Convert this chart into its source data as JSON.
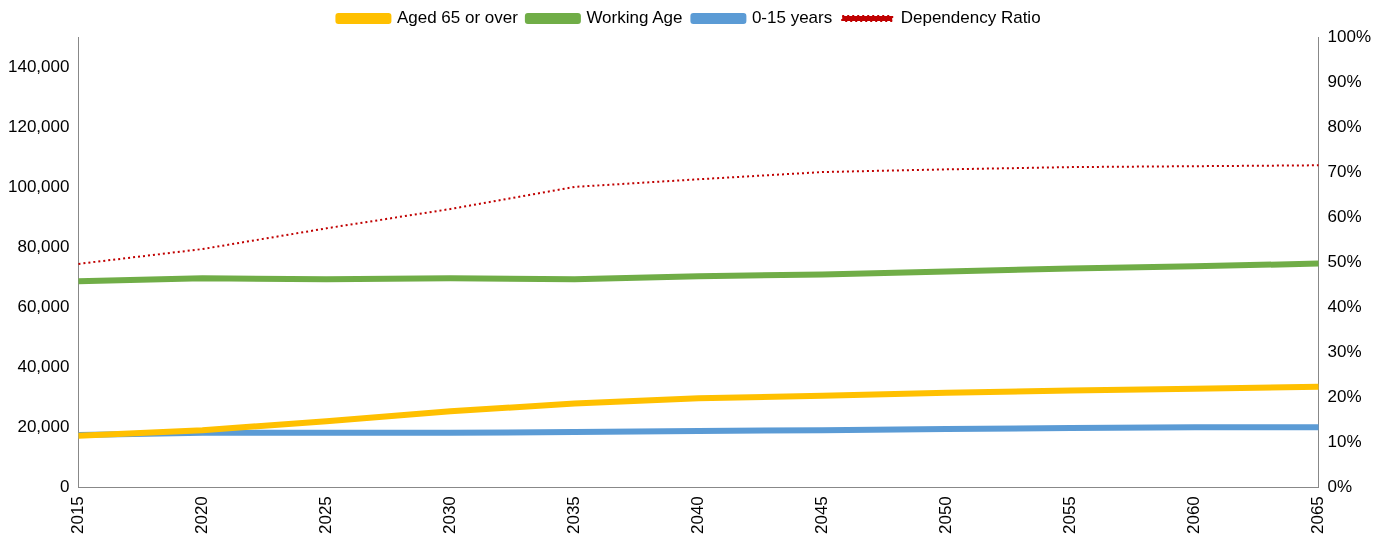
{
  "chart_data": {
    "type": "line",
    "categories": [
      "2015",
      "2020",
      "2025",
      "2030",
      "2035",
      "2040",
      "2045",
      "2050",
      "2055",
      "2060",
      "2065"
    ],
    "series": [
      {
        "name": "Aged 65 or over",
        "color": "#ffc000",
        "line_style": "solid",
        "values": [
          17100,
          19000,
          22000,
          25300,
          27900,
          29600,
          30500,
          31500,
          32200,
          32800,
          33500
        ]
      },
      {
        "name": "Working Age",
        "color": "#70ad47",
        "line_style": "solid",
        "values": [
          68600,
          69600,
          69300,
          69600,
          69300,
          70300,
          70900,
          71900,
          72900,
          73600,
          74500
        ]
      },
      {
        "name": "0-15 years",
        "color": "#5b9bd5",
        "line_style": "solid",
        "values": [
          17400,
          18100,
          18100,
          18100,
          18400,
          18700,
          19000,
          19400,
          19700,
          20000,
          20000
        ]
      },
      {
        "name": "Dependency Ratio",
        "color": "#c00000",
        "line_style": "dotted",
        "axis": "y2",
        "values": [
          49.6,
          52.9,
          57.5,
          61.8,
          66.7,
          68.4,
          70.0,
          70.6,
          71.1,
          71.3,
          71.5
        ]
      }
    ],
    "ylim": [
      0,
      150000
    ],
    "yticks": [
      {
        "value": 0,
        "label": "0"
      },
      {
        "value": 20000,
        "label": "20,000"
      },
      {
        "value": 40000,
        "label": "40,000"
      },
      {
        "value": 60000,
        "label": "60,000"
      },
      {
        "value": 80000,
        "label": "80,000"
      },
      {
        "value": 100000,
        "label": "100,000"
      },
      {
        "value": 120000,
        "label": "120,000"
      },
      {
        "value": 140000,
        "label": "140,000"
      }
    ],
    "y2lim": [
      0,
      100
    ],
    "y2ticks": [
      {
        "value": 0,
        "label": "0%"
      },
      {
        "value": 10,
        "label": "10%"
      },
      {
        "value": 20,
        "label": "20%"
      },
      {
        "value": 30,
        "label": "30%"
      },
      {
        "value": 40,
        "label": "40%"
      },
      {
        "value": 50,
        "label": "50%"
      },
      {
        "value": 60,
        "label": "60%"
      },
      {
        "value": 70,
        "label": "70%"
      },
      {
        "value": 80,
        "label": "80%"
      },
      {
        "value": 90,
        "label": "90%"
      },
      {
        "value": 100,
        "label": "100%"
      }
    ],
    "grid": false,
    "legend": "top",
    "marker": "none"
  }
}
